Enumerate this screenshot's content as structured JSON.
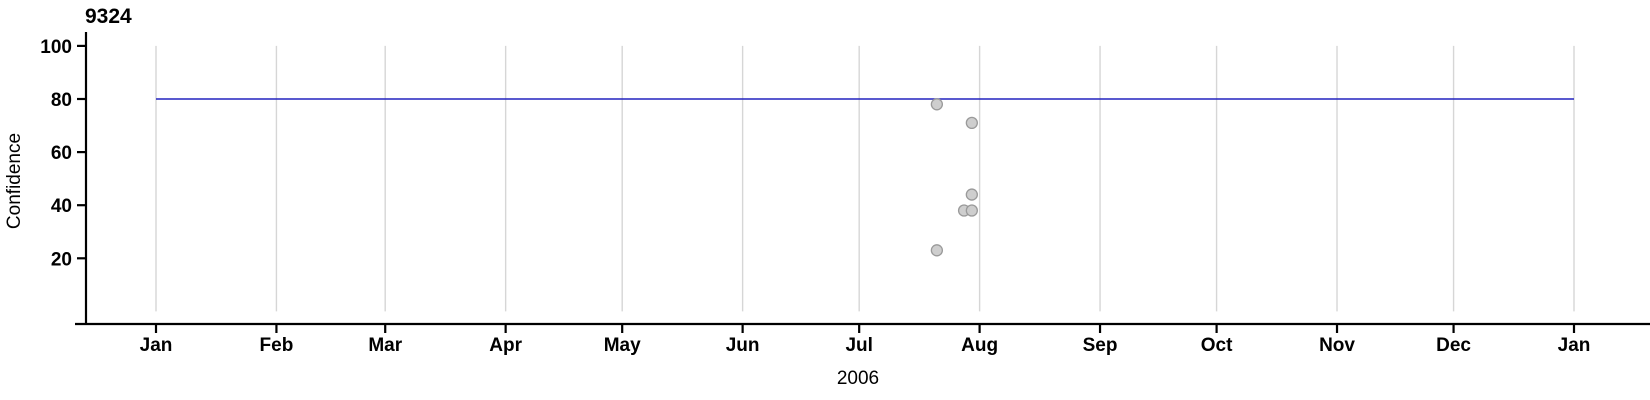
{
  "chart_data": {
    "type": "scatter",
    "title": "9324",
    "xlabel": "2006",
    "ylabel": "Confidence",
    "x_domain": [
      "2006-01-01",
      "2007-01-01"
    ],
    "x_tick_labels": [
      "Jan",
      "Feb",
      "Mar",
      "Apr",
      "May",
      "Jun",
      "Jul",
      "Aug",
      "Sep",
      "Oct",
      "Nov",
      "Dec",
      "Jan"
    ],
    "yticks": [
      20,
      40,
      60,
      80,
      100
    ],
    "ylim": [
      0,
      110
    ],
    "grid": "vertical-monthly",
    "reference_line": {
      "y": 80,
      "x_start": "2006-01-01",
      "x_end": "2007-01-01",
      "color": "#2222bf"
    },
    "points": [
      {
        "date": "2006-07-21",
        "value": 78
      },
      {
        "date": "2006-07-30",
        "value": 71
      },
      {
        "date": "2006-07-30",
        "value": 44
      },
      {
        "date": "2006-07-28",
        "value": 38
      },
      {
        "date": "2006-07-30",
        "value": 38
      },
      {
        "date": "2006-07-21",
        "value": 23
      }
    ],
    "style": {
      "point_fill": "#cbcbcb",
      "point_stroke": "#9a9a9a",
      "grid_color": "#d6d6d6",
      "axis_color": "#000000",
      "background": "#ffffff"
    }
  }
}
